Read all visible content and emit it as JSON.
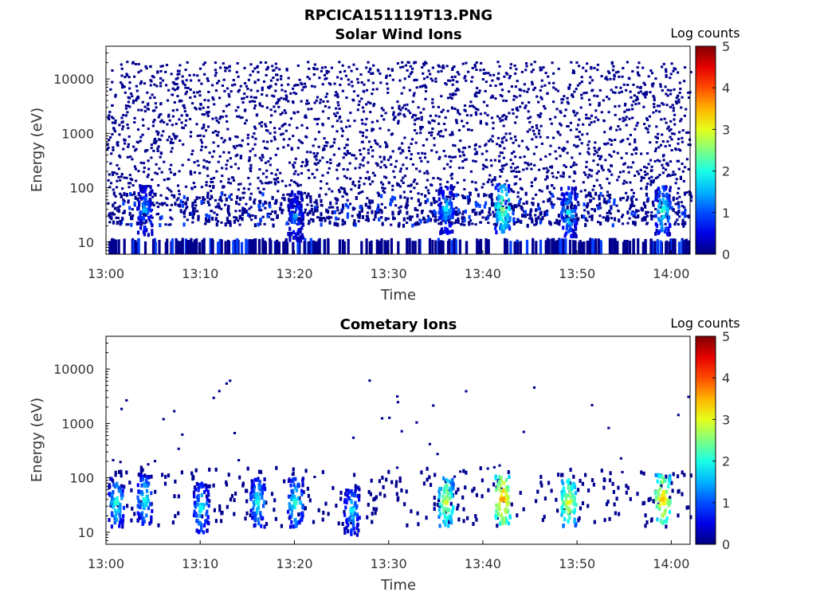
{
  "figure_title": "RPCICA151119T13.PNG",
  "chart_data": [
    {
      "type": "heatmap",
      "title": "Solar Wind Ions",
      "xlabel": "Time",
      "ylabel": "Energy (eV)",
      "x_tick_labels": [
        "13:00",
        "13:10",
        "13:20",
        "13:30",
        "13:40",
        "13:50",
        "14:00"
      ],
      "x_range": [
        "13:00",
        "14:02"
      ],
      "y_scale": "log",
      "y_tick_labels": [
        "10",
        "100",
        "1000",
        "10000"
      ],
      "y_range": [
        6,
        40000
      ],
      "colorbar": {
        "label": "Log counts",
        "range": [
          0,
          5
        ],
        "tick_labels": [
          "0",
          "1",
          "2",
          "3",
          "4",
          "5"
        ],
        "colormap": "jet"
      },
      "grid": false,
      "hotspots": [
        {
          "time": "13:04",
          "energy_eV": 38,
          "log_counts": 1.5
        },
        {
          "time": "13:20",
          "energy_eV": 30,
          "log_counts": 1.4
        },
        {
          "time": "13:36",
          "energy_eV": 40,
          "log_counts": 1.8
        },
        {
          "time": "13:42",
          "energy_eV": 40,
          "log_counts": 2.5
        },
        {
          "time": "13:49",
          "energy_eV": 35,
          "log_counts": 1.9
        },
        {
          "time": "13:59",
          "energy_eV": 38,
          "log_counts": 2.1
        }
      ]
    },
    {
      "type": "heatmap",
      "title": "Cometary Ions",
      "xlabel": "Time",
      "ylabel": "Energy (eV)",
      "x_tick_labels": [
        "13:00",
        "13:10",
        "13:20",
        "13:30",
        "13:40",
        "13:50",
        "14:00"
      ],
      "x_range": [
        "13:00",
        "14:02"
      ],
      "y_scale": "log",
      "y_tick_labels": [
        "10",
        "100",
        "1000",
        "10000"
      ],
      "y_range": [
        6,
        40000
      ],
      "colorbar": {
        "label": "Log counts",
        "range": [
          0,
          5
        ],
        "tick_labels": [
          "0",
          "1",
          "2",
          "3",
          "4",
          "5"
        ],
        "colormap": "jet"
      },
      "grid": false,
      "hotspots": [
        {
          "time": "13:01",
          "energy_eV": 35,
          "log_counts": 2.1
        },
        {
          "time": "13:04",
          "energy_eV": 40,
          "log_counts": 2.0
        },
        {
          "time": "13:10",
          "energy_eV": 28,
          "log_counts": 1.9
        },
        {
          "time": "13:16",
          "energy_eV": 35,
          "log_counts": 2.0
        },
        {
          "time": "13:20",
          "energy_eV": 35,
          "log_counts": 2.1
        },
        {
          "time": "13:26",
          "energy_eV": 25,
          "log_counts": 1.8
        },
        {
          "time": "13:36",
          "energy_eV": 35,
          "log_counts": 2.9
        },
        {
          "time": "13:42",
          "energy_eV": 40,
          "log_counts": 3.6
        },
        {
          "time": "13:49",
          "energy_eV": 35,
          "log_counts": 3.0
        },
        {
          "time": "13:59",
          "energy_eV": 40,
          "log_counts": 3.4
        }
      ]
    }
  ]
}
